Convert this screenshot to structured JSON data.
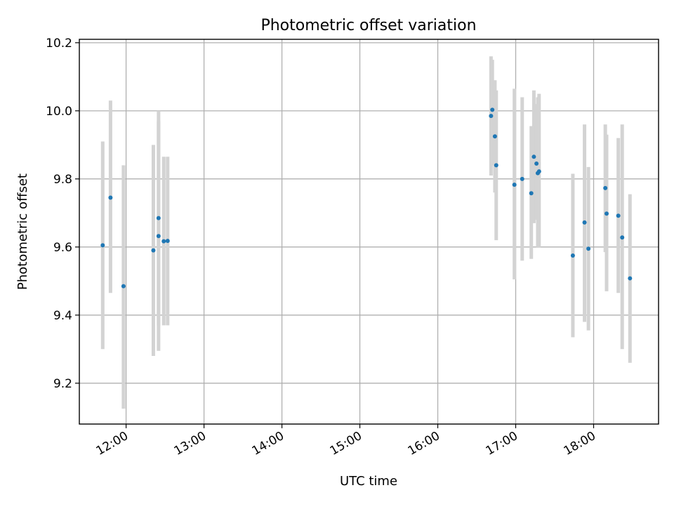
{
  "colors": {
    "point": "#1f77b4",
    "errorbar": "#d3d3d3",
    "grid": "#b0b0b0",
    "axes": "#000000",
    "background": "#ffffff"
  },
  "chart_data": {
    "type": "scatter",
    "title": "Photometric offset variation",
    "xlabel": "UTC time",
    "ylabel": "Photometric offset",
    "xlim": [
      "11:24",
      "18:50"
    ],
    "ylim": [
      9.08,
      10.21
    ],
    "grid": true,
    "x_ticks": [
      "12:00",
      "13:00",
      "14:00",
      "15:00",
      "16:00",
      "17:00",
      "18:00"
    ],
    "y_ticks": [
      "9.2",
      "9.4",
      "9.6",
      "9.8",
      "10.0",
      "10.2"
    ],
    "series": [
      {
        "style": "points with vertical error bars",
        "points": [
          {
            "x": "11:42",
            "y": 9.605,
            "ylo": 9.3,
            "yhi": 9.91
          },
          {
            "x": "11:48",
            "y": 9.745,
            "ylo": 9.465,
            "yhi": 10.03
          },
          {
            "x": "11:58",
            "y": 9.485,
            "ylo": 9.125,
            "yhi": 9.84
          },
          {
            "x": "12:21",
            "y": 9.59,
            "ylo": 9.28,
            "yhi": 9.9
          },
          {
            "x": "12:25",
            "y": 9.685,
            "ylo": 9.37,
            "yhi": 10.0
          },
          {
            "x": "12:25",
            "y": 9.632,
            "ylo": 9.295,
            "yhi": 9.97
          },
          {
            "x": "12:29",
            "y": 9.617,
            "ylo": 9.37,
            "yhi": 9.865
          },
          {
            "x": "12:32",
            "y": 9.618,
            "ylo": 9.37,
            "yhi": 9.865
          },
          {
            "x": "16:41",
            "y": 9.985,
            "ylo": 9.81,
            "yhi": 10.16
          },
          {
            "x": "16:42",
            "y": 10.003,
            "ylo": 9.84,
            "yhi": 10.15
          },
          {
            "x": "16:44",
            "y": 9.925,
            "ylo": 9.76,
            "yhi": 10.09
          },
          {
            "x": "16:45",
            "y": 9.84,
            "ylo": 9.62,
            "yhi": 10.06
          },
          {
            "x": "16:59",
            "y": 9.783,
            "ylo": 9.505,
            "yhi": 10.065
          },
          {
            "x": "17:05",
            "y": 9.8,
            "ylo": 9.56,
            "yhi": 10.04
          },
          {
            "x": "17:12",
            "y": 9.758,
            "ylo": 9.565,
            "yhi": 9.955
          },
          {
            "x": "17:14",
            "y": 9.865,
            "ylo": 9.67,
            "yhi": 10.06
          },
          {
            "x": "17:16",
            "y": 9.845,
            "ylo": 9.68,
            "yhi": 10.02
          },
          {
            "x": "17:17",
            "y": 9.817,
            "ylo": 9.6,
            "yhi": 10.04
          },
          {
            "x": "17:18",
            "y": 9.822,
            "ylo": 9.6,
            "yhi": 10.05
          },
          {
            "x": "17:44",
            "y": 9.575,
            "ylo": 9.335,
            "yhi": 9.815
          },
          {
            "x": "17:53",
            "y": 9.672,
            "ylo": 9.38,
            "yhi": 9.96
          },
          {
            "x": "17:56",
            "y": 9.595,
            "ylo": 9.355,
            "yhi": 9.835
          },
          {
            "x": "18:09",
            "y": 9.773,
            "ylo": 9.585,
            "yhi": 9.96
          },
          {
            "x": "18:10",
            "y": 9.698,
            "ylo": 9.47,
            "yhi": 9.93
          },
          {
            "x": "18:19",
            "y": 9.692,
            "ylo": 9.465,
            "yhi": 9.92
          },
          {
            "x": "18:22",
            "y": 9.628,
            "ylo": 9.3,
            "yhi": 9.96
          },
          {
            "x": "18:28",
            "y": 9.508,
            "ylo": 9.26,
            "yhi": 9.755
          }
        ]
      }
    ]
  }
}
